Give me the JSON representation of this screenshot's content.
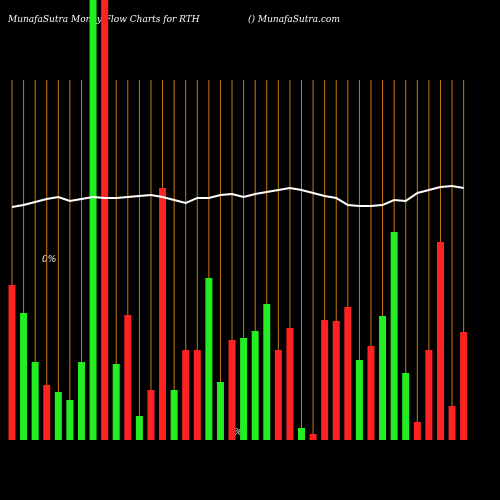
{
  "chart_data": {
    "type": "bar",
    "title": "MunafaSutra  Money Flow  Charts for RTH",
    "subtitle": "() MunafaSutra.com",
    "annotations": [
      "0%",
      "0%"
    ],
    "ylim": [
      0,
      440
    ],
    "up_color": "#22ee22",
    "down_color": "#ff2222",
    "guide_color": "#c87a10",
    "line_color": "#ffffff",
    "series": [
      {
        "name": "money flow",
        "values": [
          155,
          127,
          78,
          55,
          48,
          40,
          78,
          440,
          440,
          76,
          125,
          24,
          50,
          252,
          50,
          90,
          90,
          162,
          58,
          100,
          102,
          109,
          136,
          90,
          112,
          12,
          6,
          120,
          119,
          133,
          80,
          94,
          124,
          208,
          67,
          18,
          90,
          198,
          34,
          108
        ],
        "directions": [
          "down",
          "up",
          "up",
          "down",
          "up",
          "up",
          "up",
          "up",
          "down",
          "up",
          "down",
          "up",
          "down",
          "down",
          "up",
          "down",
          "down",
          "up",
          "up",
          "down",
          "up",
          "up",
          "up",
          "down",
          "down",
          "up",
          "down",
          "down",
          "down",
          "down",
          "up",
          "down",
          "up",
          "up",
          "up",
          "down",
          "down",
          "down",
          "down",
          "down"
        ]
      },
      {
        "name": "price",
        "values": [
          233,
          235,
          238,
          241,
          243,
          239,
          241,
          243,
          242,
          242,
          243,
          244,
          245,
          243,
          240,
          237,
          242,
          242,
          245,
          246,
          243,
          246,
          248,
          250,
          252,
          250,
          247,
          244,
          242,
          235,
          234,
          234,
          235,
          240,
          239,
          247,
          250,
          253,
          254,
          252
        ]
      }
    ]
  }
}
